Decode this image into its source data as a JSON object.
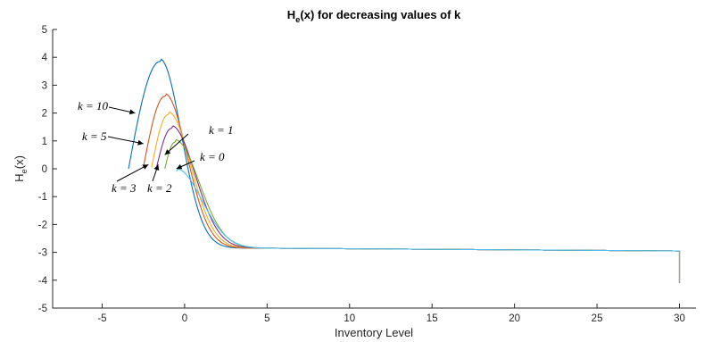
{
  "chart_data": {
    "type": "line",
    "title_main": "H",
    "title_sub": "e",
    "title_rest": "(x) for decreasing values of k",
    "xlabel": "Inventory Level",
    "ylabel_main": "H",
    "ylabel_sub": "e",
    "ylabel_rest": "(x)",
    "xlim": [
      -8,
      31
    ],
    "ylim": [
      -5,
      5
    ],
    "xticks": [
      -5,
      0,
      5,
      10,
      15,
      20,
      25,
      30
    ],
    "yticks": [
      -5,
      -4,
      -3,
      -2,
      -1,
      0,
      1,
      2,
      3,
      4,
      5
    ],
    "grid": false,
    "series": [
      {
        "color": "#0072BD",
        "x_start": -3.4,
        "peak_x": -1.5,
        "peak_y": 3.85,
        "start_y": 0.0
      },
      {
        "color": "#D95319",
        "x_start": -2.5,
        "peak_x": -1.2,
        "peak_y": 2.6,
        "start_y": 0.05
      },
      {
        "color": "#EDB120",
        "x_start": -2.0,
        "peak_x": -1.0,
        "peak_y": 1.95,
        "start_y": 0.05
      },
      {
        "color": "#7E2F8E",
        "x_start": -1.7,
        "peak_x": -0.8,
        "peak_y": 1.45,
        "start_y": 0.05
      },
      {
        "color": "#77AC30",
        "x_start": -1.2,
        "peak_x": -0.6,
        "peak_y": 0.95,
        "start_y": 0.0
      },
      {
        "color": "#4DBEEE",
        "x_start": -0.5,
        "peak_x": -0.5,
        "peak_y": -0.1,
        "start_y": -0.1
      }
    ],
    "tail": {
      "x_end": 30,
      "y_plateau": -2.95,
      "y_end": -4.1
    },
    "annotations": [
      {
        "text": "k = 10",
        "target_x": -3.0,
        "target_y": 2.0
      },
      {
        "text": "k = 5",
        "target_x": -2.5,
        "target_y": 0.9
      },
      {
        "text": "k = 3",
        "target_x": -2.2,
        "target_y": 0.15
      },
      {
        "text": "k = 2",
        "target_x": -1.6,
        "target_y": 0.15
      },
      {
        "text": "k = 1",
        "target_x": -1.2,
        "target_y": 0.5
      },
      {
        "text": "k = 0",
        "target_x": -0.5,
        "target_y": 0.0
      }
    ]
  }
}
